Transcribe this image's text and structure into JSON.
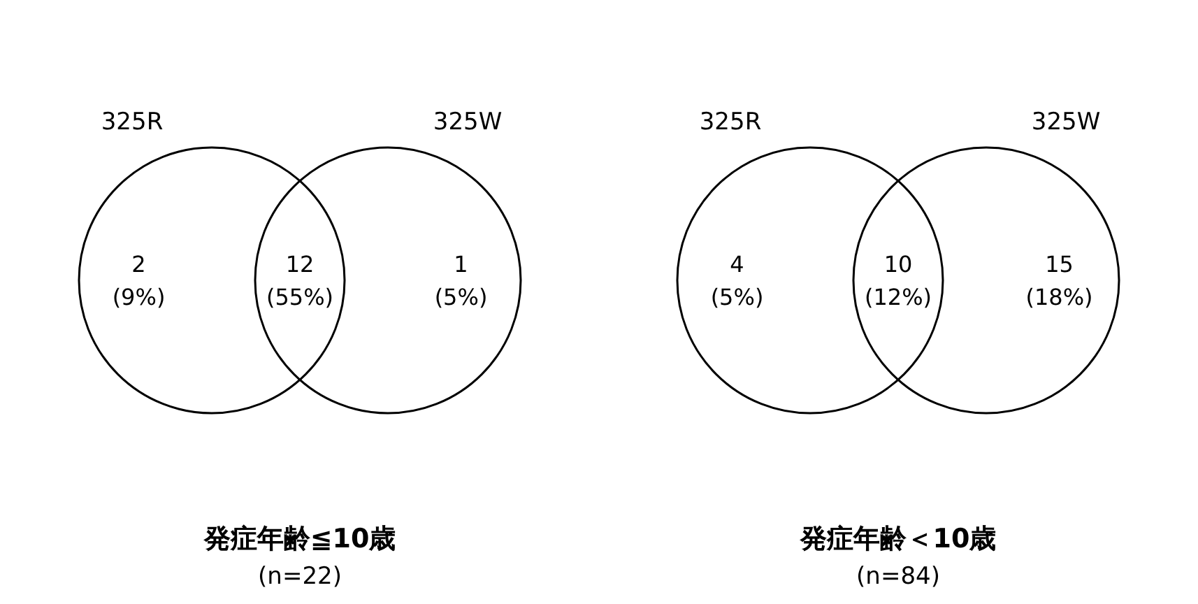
{
  "chart_data": [
    {
      "type": "other",
      "title": "発症年齢≦10歳",
      "subtitle": "(n=22)",
      "categories": [
        null,
        null,
        null
      ],
      "values": [
        2,
        12,
        1
      ],
      "data_labels": true,
      "color": "#000000",
      "annotations": [
        "325R",
        "325W",
        "(9%)",
        "(55%)",
        "(5%)"
      ]
    },
    {
      "type": "other",
      "title": "発症年齢＜10歳",
      "subtitle": "(n=84)",
      "categories": [
        null,
        null,
        null
      ],
      "values": [
        4,
        10,
        15
      ],
      "data_labels": true,
      "color": "#000000",
      "annotations": [
        "325R",
        "325W",
        "(5%)",
        "(12%)",
        "(18%)"
      ]
    }
  ]
}
